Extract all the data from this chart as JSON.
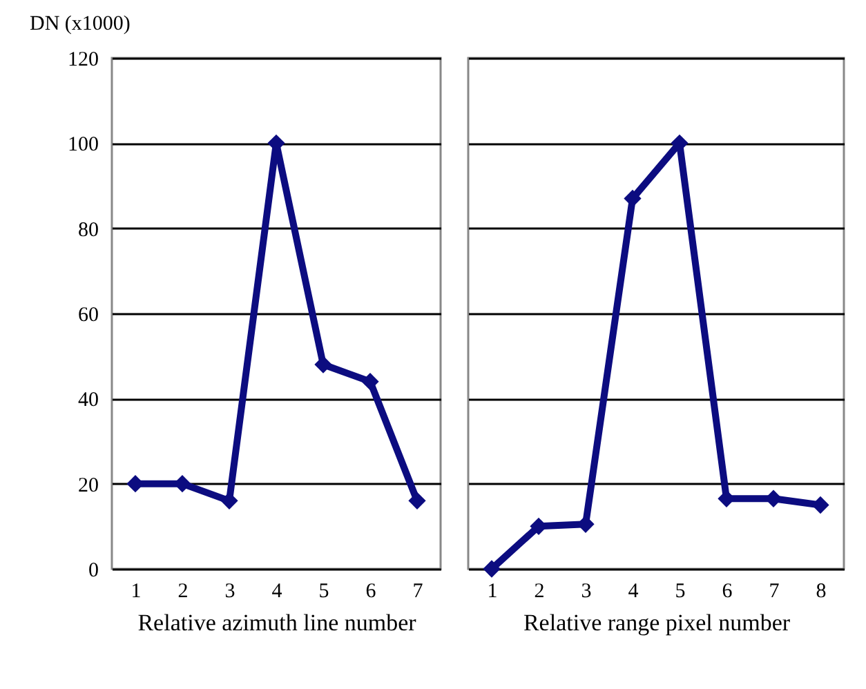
{
  "chart_data": [
    {
      "type": "line",
      "ylabel": "DN (x1000)",
      "xlabel": "Relative azimuth line number",
      "categories": [
        "1",
        "2",
        "3",
        "4",
        "5",
        "6",
        "7"
      ],
      "series": [
        {
          "color": "#0c0c80",
          "values": [
            20,
            20,
            16,
            100,
            48,
            44,
            16
          ]
        }
      ],
      "ylim": [
        0,
        120
      ],
      "yticks": [
        0,
        20,
        40,
        60,
        80,
        100,
        120
      ],
      "grid": "y",
      "marker": "diamond",
      "line_style": "solid"
    },
    {
      "type": "line",
      "xlabel": "Relative range pixel number",
      "categories": [
        "1",
        "2",
        "3",
        "4",
        "5",
        "6",
        "7",
        "8"
      ],
      "series": [
        {
          "color": "#0c0c80",
          "values": [
            0,
            10,
            10.5,
            87,
            100,
            16.5,
            16.5,
            15
          ]
        }
      ],
      "ylim": [
        0,
        120
      ],
      "yticks": [
        0,
        20,
        40,
        60,
        80,
        100,
        120
      ],
      "grid": "y",
      "marker": "diamond",
      "line_style": "solid",
      "tick_labels": "x"
    }
  ]
}
